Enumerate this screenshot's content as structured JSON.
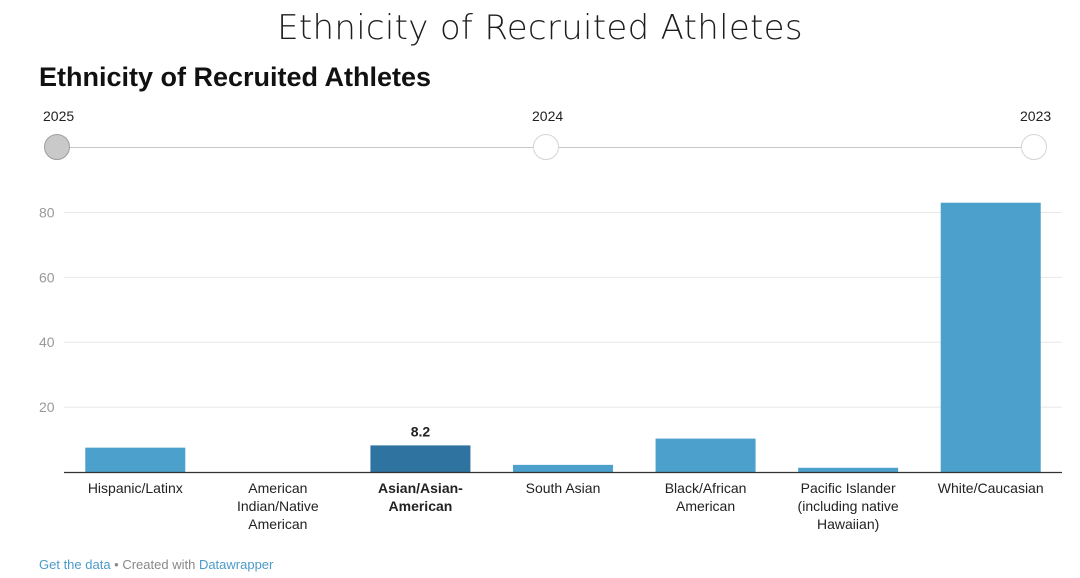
{
  "page_title": "Ethnicity of Recruited Athletes",
  "chart_title": "Ethnicity of Recruited Athletes",
  "slider": {
    "options": [
      "2025",
      "2024",
      "2023"
    ],
    "selected": "2025"
  },
  "colors": {
    "bar": "#4ba0cc",
    "bar_highlight": "#2f73a0",
    "grid": "#e8e8e8",
    "axis": "#333333",
    "link": "#4b9bc9"
  },
  "chart_data": {
    "type": "bar",
    "title": "Ethnicity of Recruited Athletes",
    "xlabel": "",
    "ylabel": "",
    "ylim": [
      0,
      90
    ],
    "yticks": [
      20,
      40,
      60,
      80
    ],
    "grid": true,
    "categories": [
      [
        "Hispanic/Latinx"
      ],
      [
        "American",
        "Indian/Native",
        "American"
      ],
      [
        "Asian/Asian-",
        "American"
      ],
      [
        "South Asian"
      ],
      [
        "Black/African",
        "American"
      ],
      [
        "Pacific Islander",
        "(including native",
        "Hawaiian)"
      ],
      [
        "White/Caucasian"
      ]
    ],
    "values": [
      7.5,
      0,
      8.2,
      2.2,
      10.3,
      1.3,
      83
    ],
    "highlight_index": 2,
    "highlight_label": "8.2"
  },
  "footer": {
    "get_data": "Get the data",
    "separator": " • Created with ",
    "datawrapper": "Datawrapper"
  }
}
